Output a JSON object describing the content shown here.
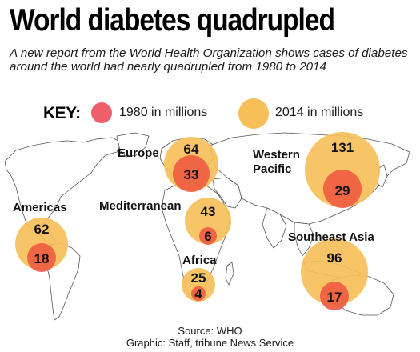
{
  "header": {
    "title": "World diabetes quadrupled",
    "subtitle": "A new report from the World Health Organization shows cases of diabetes around the world had nearly quadrupled from 1980 to 2014"
  },
  "key": {
    "label": "KEY:",
    "items": [
      {
        "label": "1980 in millions",
        "color": "#f0606a"
      },
      {
        "label": "2014 in millions",
        "color": "#f6bf57"
      }
    ]
  },
  "map": {
    "land_color": "#ffffff",
    "border_color": "#555555",
    "regions": [
      {
        "name": "Europe",
        "value_1980": "33",
        "value_2014": "64"
      },
      {
        "name": "Western Pacific",
        "value_1980": "29",
        "value_2014": "131"
      },
      {
        "name": "Americas",
        "value_1980": "18",
        "value_2014": "62"
      },
      {
        "name": "Mediterranean",
        "value_1980": "6",
        "value_2014": "43"
      },
      {
        "name": "Africa",
        "value_1980": "4",
        "value_2014": "25"
      },
      {
        "name": "Southeast Asia",
        "value_1980": "17",
        "value_2014": "96"
      }
    ]
  },
  "credits": {
    "source": "Source: WHO",
    "graphic": "Graphic: Staff, tribune News Service"
  }
}
